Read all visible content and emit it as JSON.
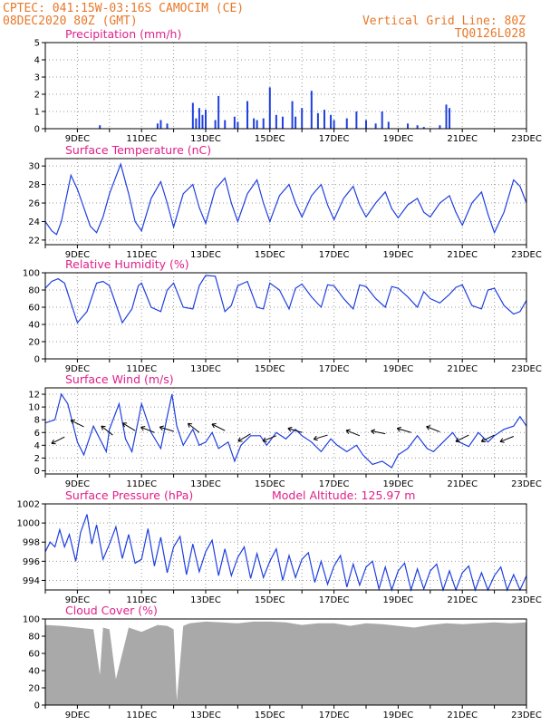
{
  "header": {
    "location": "CPTEC:   041:15W-03:16S   CAMOCIM (CE)",
    "init": "08DEC2020 80Z (GMT)",
    "grid_note": "Vertical Grid Line: 80Z",
    "model": "TQ0126L028"
  },
  "x_axis": {
    "start": "08DEC",
    "end": "23DEC",
    "tick_labels": [
      "9DEC",
      "11DEC",
      "13DEC",
      "15DEC",
      "17DEC",
      "19DEC",
      "21DEC",
      "23DEC"
    ]
  },
  "colors": {
    "series": "#1f3fe0",
    "cloud": "#a9a9a9",
    "header": "#e8782a",
    "title": "#e0208a"
  },
  "chart_data": [
    {
      "id": "precip",
      "type": "bar",
      "title": "Precipitation (mm/h)",
      "ylim": [
        0,
        5
      ],
      "yticks": [
        0,
        1,
        2,
        3,
        4,
        5
      ],
      "grid": true,
      "x_unit": "days since 08DEC",
      "x": [
        1.7,
        3.5,
        3.6,
        3.8,
        4.6,
        4.7,
        4.8,
        4.9,
        5.0,
        5.3,
        5.4,
        5.6,
        5.9,
        6.0,
        6.3,
        6.5,
        6.6,
        6.8,
        7.0,
        7.2,
        7.4,
        7.7,
        7.8,
        8.0,
        8.3,
        8.5,
        8.7,
        8.9,
        9.0,
        9.4,
        9.7,
        10.0,
        10.3,
        10.5,
        10.7,
        11.3,
        11.6,
        11.8,
        12.3,
        12.5,
        12.6
      ],
      "values": [
        0.2,
        0.3,
        0.5,
        0.3,
        1.5,
        0.6,
        1.2,
        0.8,
        1.1,
        0.5,
        1.9,
        0.5,
        0.7,
        0.4,
        1.6,
        0.6,
        0.5,
        0.6,
        2.4,
        0.8,
        0.7,
        1.6,
        0.7,
        1.2,
        2.2,
        0.9,
        1.1,
        0.8,
        0.5,
        0.6,
        1.0,
        0.5,
        0.3,
        1.0,
        0.4,
        0.3,
        0.2,
        0.1,
        0.2,
        1.4,
        1.2
      ]
    },
    {
      "id": "temp",
      "type": "line",
      "title": "Surface Temperature (nC)",
      "ylim": [
        21.5,
        30.8
      ],
      "yticks": [
        22,
        24,
        26,
        28,
        30
      ],
      "grid": true,
      "x_unit": "days since 08DEC",
      "x": [
        0.0,
        0.2,
        0.35,
        0.5,
        0.8,
        1.0,
        1.4,
        1.6,
        1.8,
        2.0,
        2.35,
        2.6,
        2.8,
        3.0,
        3.3,
        3.6,
        3.8,
        4.0,
        4.3,
        4.6,
        4.8,
        5.0,
        5.3,
        5.6,
        5.8,
        6.0,
        6.3,
        6.6,
        6.8,
        7.0,
        7.3,
        7.6,
        7.8,
        8.0,
        8.3,
        8.6,
        8.8,
        9.0,
        9.3,
        9.6,
        9.8,
        10.0,
        10.3,
        10.6,
        10.8,
        11.0,
        11.3,
        11.6,
        11.8,
        12.0,
        12.3,
        12.6,
        12.8,
        13.0,
        13.3,
        13.6,
        13.8,
        14.0,
        14.3,
        14.6,
        14.8,
        15.0
      ],
      "values": [
        24.0,
        23.0,
        22.6,
        24.0,
        29.0,
        27.5,
        23.5,
        22.8,
        24.5,
        27.0,
        30.2,
        27.0,
        24.0,
        23.0,
        26.5,
        28.3,
        26.0,
        23.4,
        27.0,
        28.0,
        25.5,
        23.8,
        27.5,
        28.7,
        26.0,
        24.0,
        27.0,
        28.5,
        26.0,
        24.0,
        26.8,
        28.0,
        26.0,
        24.5,
        26.8,
        28.0,
        25.8,
        24.2,
        26.5,
        27.8,
        25.8,
        24.5,
        26.0,
        27.2,
        25.4,
        24.4,
        25.8,
        26.5,
        25.0,
        24.5,
        26.0,
        26.8,
        25.0,
        23.6,
        26.0,
        27.2,
        24.8,
        22.8,
        25.0,
        28.5,
        27.8,
        26.0
      ]
    },
    {
      "id": "rh",
      "type": "line",
      "title": "Relative Humidity (%)",
      "ylim": [
        0,
        100
      ],
      "yticks": [
        0,
        20,
        40,
        60,
        80,
        100
      ],
      "grid": true,
      "x_unit": "days since 08DEC",
      "x": [
        0.0,
        0.2,
        0.4,
        0.6,
        1.0,
        1.3,
        1.6,
        1.8,
        2.0,
        2.4,
        2.7,
        2.9,
        3.0,
        3.3,
        3.6,
        3.8,
        4.0,
        4.3,
        4.6,
        4.8,
        5.0,
        5.3,
        5.6,
        5.8,
        6.0,
        6.3,
        6.6,
        6.8,
        7.0,
        7.3,
        7.6,
        7.8,
        8.0,
        8.3,
        8.6,
        8.8,
        9.0,
        9.3,
        9.6,
        9.8,
        10.0,
        10.3,
        10.6,
        10.8,
        11.0,
        11.3,
        11.6,
        11.8,
        12.0,
        12.3,
        12.6,
        12.8,
        13.0,
        13.3,
        13.6,
        13.8,
        14.0,
        14.3,
        14.6,
        14.8,
        15.0
      ],
      "values": [
        82,
        90,
        93,
        88,
        42,
        55,
        88,
        90,
        85,
        42,
        58,
        85,
        88,
        60,
        55,
        80,
        88,
        60,
        58,
        85,
        97,
        96,
        55,
        62,
        85,
        90,
        60,
        58,
        88,
        80,
        58,
        82,
        87,
        72,
        60,
        86,
        85,
        70,
        58,
        86,
        84,
        70,
        60,
        84,
        82,
        72,
        60,
        78,
        70,
        65,
        75,
        83,
        86,
        62,
        58,
        80,
        82,
        62,
        52,
        55,
        68
      ]
    },
    {
      "id": "wind",
      "type": "line",
      "title": "Surface Wind (m/s)",
      "ylim": [
        -0.5,
        13
      ],
      "yticks": [
        0,
        2,
        4,
        6,
        8,
        10,
        12
      ],
      "grid": true,
      "x_unit": "days since 08DEC",
      "x": [
        0.0,
        0.3,
        0.5,
        0.7,
        1.0,
        1.2,
        1.5,
        1.7,
        1.9,
        2.0,
        2.3,
        2.5,
        2.7,
        2.9,
        3.0,
        3.3,
        3.6,
        3.8,
        3.95,
        4.1,
        4.3,
        4.6,
        4.8,
        5.0,
        5.2,
        5.4,
        5.7,
        5.9,
        6.1,
        6.4,
        6.7,
        6.9,
        7.2,
        7.5,
        7.8,
        8.0,
        8.3,
        8.6,
        8.9,
        9.1,
        9.4,
        9.7,
        9.9,
        10.2,
        10.5,
        10.8,
        11.0,
        11.3,
        11.6,
        11.9,
        12.1,
        12.4,
        12.7,
        12.9,
        13.2,
        13.5,
        13.8,
        14.0,
        14.3,
        14.6,
        14.8,
        15.0
      ],
      "values": [
        7.5,
        8.0,
        12.0,
        10.5,
        4.5,
        2.5,
        7.0,
        5.0,
        3.0,
        6.5,
        10.5,
        5.0,
        3.0,
        8.0,
        10.5,
        6.0,
        3.5,
        8.5,
        12.0,
        7.0,
        4.0,
        6.5,
        4.0,
        4.5,
        6.0,
        3.5,
        4.5,
        1.5,
        4.0,
        5.5,
        5.5,
        4.0,
        6.0,
        5.0,
        6.5,
        5.5,
        4.5,
        3.0,
        5.0,
        4.0,
        3.0,
        4.0,
        2.5,
        1.0,
        1.5,
        0.5,
        2.5,
        3.5,
        5.5,
        3.5,
        3.0,
        4.5,
        6.0,
        4.5,
        3.8,
        6.0,
        4.5,
        5.5,
        6.5,
        7.0,
        8.5,
        7.0
      ],
      "arrows": [
        {
          "x": 0.6,
          "y": 5.3,
          "dx": -1,
          "dy": -0.5
        },
        {
          "x": 1.2,
          "y": 6.9,
          "dx": -1,
          "dy": 0.5
        },
        {
          "x": 2.1,
          "y": 5.6,
          "dx": -1,
          "dy": 0.8
        },
        {
          "x": 2.8,
          "y": 6.3,
          "dx": -1,
          "dy": 0.6
        },
        {
          "x": 3.4,
          "y": 6.0,
          "dx": -1,
          "dy": 0.4
        },
        {
          "x": 4.0,
          "y": 6.2,
          "dx": -1,
          "dy": 0.3
        },
        {
          "x": 4.8,
          "y": 6.0,
          "dx": -1,
          "dy": 0.8
        },
        {
          "x": 5.6,
          "y": 6.3,
          "dx": -1,
          "dy": 0.5
        },
        {
          "x": 6.4,
          "y": 5.8,
          "dx": -1,
          "dy": -0.6
        },
        {
          "x": 7.2,
          "y": 5.5,
          "dx": -1,
          "dy": -0.4
        },
        {
          "x": 8.0,
          "y": 6.0,
          "dx": -1,
          "dy": 0.3
        },
        {
          "x": 8.8,
          "y": 5.6,
          "dx": -1,
          "dy": -0.3
        },
        {
          "x": 9.8,
          "y": 5.5,
          "dx": -1,
          "dy": 0.4
        },
        {
          "x": 10.6,
          "y": 5.8,
          "dx": -1,
          "dy": 0.2
        },
        {
          "x": 11.4,
          "y": 6.0,
          "dx": -1,
          "dy": 0.3
        },
        {
          "x": 12.3,
          "y": 6.1,
          "dx": -1,
          "dy": 0.4
        },
        {
          "x": 13.2,
          "y": 5.6,
          "dx": -1,
          "dy": -0.5
        },
        {
          "x": 14.0,
          "y": 5.6,
          "dx": -1,
          "dy": -0.5
        },
        {
          "x": 14.6,
          "y": 5.4,
          "dx": -1,
          "dy": -0.4
        }
      ]
    },
    {
      "id": "pressure",
      "type": "line",
      "title": "Surface Pressure (hPa)",
      "subtitle": "Model Altitude: 125.97 m",
      "ylim": [
        993,
        1002
      ],
      "yticks": [
        994,
        996,
        998,
        1000,
        1002
      ],
      "grid": true,
      "x_unit": "days since 08DEC",
      "x": [
        0.0,
        0.15,
        0.3,
        0.45,
        0.6,
        0.75,
        0.95,
        1.1,
        1.3,
        1.45,
        1.6,
        1.8,
        2.0,
        2.2,
        2.4,
        2.6,
        2.8,
        3.0,
        3.2,
        3.4,
        3.6,
        3.8,
        4.0,
        4.2,
        4.4,
        4.6,
        4.8,
        5.0,
        5.2,
        5.4,
        5.6,
        5.8,
        6.0,
        6.2,
        6.4,
        6.6,
        6.8,
        7.0,
        7.2,
        7.4,
        7.6,
        7.8,
        8.0,
        8.2,
        8.4,
        8.6,
        8.8,
        9.0,
        9.2,
        9.4,
        9.6,
        9.8,
        10.0,
        10.2,
        10.4,
        10.6,
        10.8,
        11.0,
        11.2,
        11.4,
        11.6,
        11.8,
        12.0,
        12.2,
        12.4,
        12.6,
        12.8,
        13.0,
        13.2,
        13.4,
        13.6,
        13.8,
        14.0,
        14.2,
        14.4,
        14.6,
        14.8,
        15.0
      ],
      "values": [
        997.0,
        998.0,
        997.5,
        999.3,
        997.5,
        998.8,
        996.0,
        999.0,
        1000.9,
        997.8,
        999.8,
        996.2,
        997.8,
        999.6,
        996.3,
        998.8,
        995.8,
        996.2,
        999.4,
        995.5,
        998.5,
        994.8,
        997.5,
        998.6,
        994.6,
        997.8,
        994.9,
        997.0,
        998.2,
        994.5,
        997.3,
        994.5,
        996.4,
        997.5,
        994.2,
        996.8,
        994.3,
        996.0,
        997.3,
        994.0,
        996.6,
        994.3,
        996.2,
        996.9,
        993.8,
        996.0,
        993.6,
        995.5,
        996.6,
        993.3,
        995.7,
        993.5,
        995.4,
        996.0,
        993.1,
        995.4,
        993.0,
        995.0,
        995.8,
        993.0,
        995.2,
        993.1,
        995.0,
        995.7,
        993.0,
        995.0,
        993.0,
        994.8,
        995.5,
        993.0,
        994.8,
        993.0,
        994.5,
        995.4,
        993.0,
        994.6,
        993.0,
        994.5
      ]
    },
    {
      "id": "cloud",
      "type": "area",
      "title": "Cloud Cover (%)",
      "ylim": [
        0,
        100
      ],
      "yticks": [
        0,
        20,
        40,
        60,
        80,
        100
      ],
      "grid": false,
      "x_unit": "days since 08DEC",
      "x": [
        0.0,
        0.5,
        1.0,
        1.5,
        1.7,
        1.8,
        2.0,
        2.2,
        2.6,
        3.0,
        3.5,
        3.8,
        4.0,
        4.1,
        4.3,
        4.5,
        5.0,
        5.5,
        6.0,
        6.5,
        7.0,
        7.5,
        8.0,
        8.5,
        9.0,
        9.5,
        10.0,
        10.5,
        11.0,
        11.5,
        12.0,
        12.5,
        13.0,
        13.5,
        14.0,
        14.5,
        15.0
      ],
      "values": [
        93,
        92,
        90,
        88,
        35,
        90,
        88,
        30,
        90,
        85,
        93,
        92,
        88,
        5,
        92,
        95,
        97,
        96,
        95,
        97,
        97,
        96,
        93,
        95,
        95,
        92,
        95,
        94,
        92,
        90,
        93,
        95,
        94,
        95,
        96,
        95,
        96
      ]
    }
  ]
}
